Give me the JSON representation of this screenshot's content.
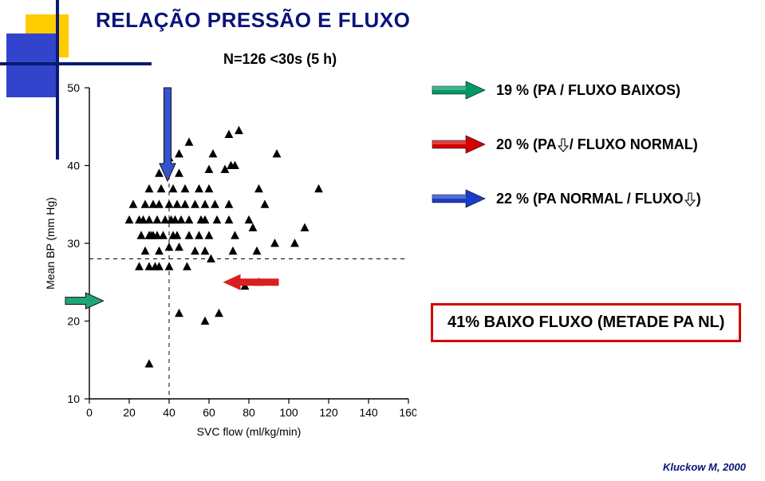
{
  "title": "RELAÇÃO PRESSÃO E FLUXO",
  "subtitle": "N=126 <30s (5 h)",
  "citation": "Kluckow M, 2000",
  "red_box": "41% BAIXO FLUXO (METADE PA NL)",
  "legend": [
    {
      "arrow_color": "#009966",
      "text_before": "19 % (PA / FLUXO BAIXOS)",
      "pa_arrow": null
    },
    {
      "arrow_color": "#d40000",
      "text_before": "20 % (PA",
      "mid_arrow_color": "#000",
      "text_after": "/ FLUXO NORMAL)"
    },
    {
      "arrow_color": "#1a3cc9",
      "text_before": "22 % (PA NORMAL / FLUXO",
      "mid_arrow_color": "#000",
      "text_after": ")"
    }
  ],
  "chart": {
    "type": "scatter",
    "xlabel": "SVC flow (ml/kg/min)",
    "ylabel": "Mean BP (mm Hg)",
    "label_fontsize": 14,
    "tick_fontsize": 14,
    "xlim": [
      0,
      160
    ],
    "ylim": [
      10,
      50
    ],
    "xticks": [
      0,
      20,
      40,
      60,
      80,
      100,
      120,
      140,
      160
    ],
    "yticks": [
      10,
      20,
      30,
      40,
      50
    ],
    "plot_bg": "#ffffff",
    "axis_color": "#000000",
    "tick_color": "#000000",
    "marker": {
      "shape": "triangle",
      "size": 9,
      "fill": "#000000"
    },
    "guides": [
      {
        "type": "vline",
        "x": 40,
        "style": "dashed",
        "color": "#000"
      },
      {
        "type": "hline",
        "y": 28,
        "style": "dashed",
        "color": "#000"
      }
    ],
    "big_arrows": [
      {
        "type": "down",
        "color": "#1a3cc9",
        "x": 39.2,
        "y_from": 50,
        "y_to": 38,
        "outline": "#000"
      },
      {
        "type": "right",
        "color": "#009966",
        "x_to": 7,
        "y": 22.6,
        "x_from": -12,
        "outline": "#000"
      },
      {
        "type": "left",
        "color": "#d40000",
        "x_to": 67,
        "y": 25,
        "x_from": 95,
        "outline": "none"
      }
    ],
    "points": [
      [
        30,
        14.5
      ],
      [
        45,
        21
      ],
      [
        58,
        20
      ],
      [
        65,
        21
      ],
      [
        78,
        24.5
      ],
      [
        85,
        25
      ],
      [
        25,
        27
      ],
      [
        30,
        27
      ],
      [
        33,
        27
      ],
      [
        35,
        27
      ],
      [
        40,
        27
      ],
      [
        49,
        27
      ],
      [
        61,
        28
      ],
      [
        28,
        29
      ],
      [
        35,
        29
      ],
      [
        40,
        29.5
      ],
      [
        45,
        29.5
      ],
      [
        53,
        29
      ],
      [
        58,
        29
      ],
      [
        72,
        29
      ],
      [
        84,
        29
      ],
      [
        93,
        30
      ],
      [
        103,
        30
      ],
      [
        26,
        31
      ],
      [
        30,
        31
      ],
      [
        31,
        31
      ],
      [
        32,
        31
      ],
      [
        34,
        31
      ],
      [
        37,
        31
      ],
      [
        42,
        31
      ],
      [
        44,
        31
      ],
      [
        50,
        31
      ],
      [
        55,
        31
      ],
      [
        60,
        31
      ],
      [
        73,
        31
      ],
      [
        82,
        32
      ],
      [
        108,
        32
      ],
      [
        20,
        33
      ],
      [
        25,
        33
      ],
      [
        27,
        33
      ],
      [
        30,
        33
      ],
      [
        34,
        33
      ],
      [
        38,
        33
      ],
      [
        41,
        33
      ],
      [
        43,
        33
      ],
      [
        46,
        33
      ],
      [
        50,
        33
      ],
      [
        56,
        33
      ],
      [
        58,
        33
      ],
      [
        64,
        33
      ],
      [
        70,
        33
      ],
      [
        80,
        33
      ],
      [
        22,
        35
      ],
      [
        28,
        35
      ],
      [
        32,
        35
      ],
      [
        35,
        35
      ],
      [
        40,
        35
      ],
      [
        44,
        35
      ],
      [
        48,
        35
      ],
      [
        53,
        35
      ],
      [
        58,
        35
      ],
      [
        63,
        35
      ],
      [
        70,
        35
      ],
      [
        88,
        35
      ],
      [
        30,
        37
      ],
      [
        36,
        37
      ],
      [
        42,
        37
      ],
      [
        48,
        37
      ],
      [
        55,
        37
      ],
      [
        60,
        37
      ],
      [
        85,
        37
      ],
      [
        115,
        37
      ],
      [
        35,
        39
      ],
      [
        45,
        39
      ],
      [
        60,
        39.5
      ],
      [
        68,
        39.5
      ],
      [
        71,
        40
      ],
      [
        73,
        40
      ],
      [
        40,
        41
      ],
      [
        45,
        41.5
      ],
      [
        62,
        41.5
      ],
      [
        94,
        41.5
      ],
      [
        50,
        43
      ],
      [
        70,
        44
      ],
      [
        75,
        44.5
      ]
    ]
  },
  "colors": {
    "deco_yellow": "#ffcc00",
    "deco_blue": "#3344cc",
    "deco_line": "#0a1a70",
    "title": "#08147a"
  }
}
